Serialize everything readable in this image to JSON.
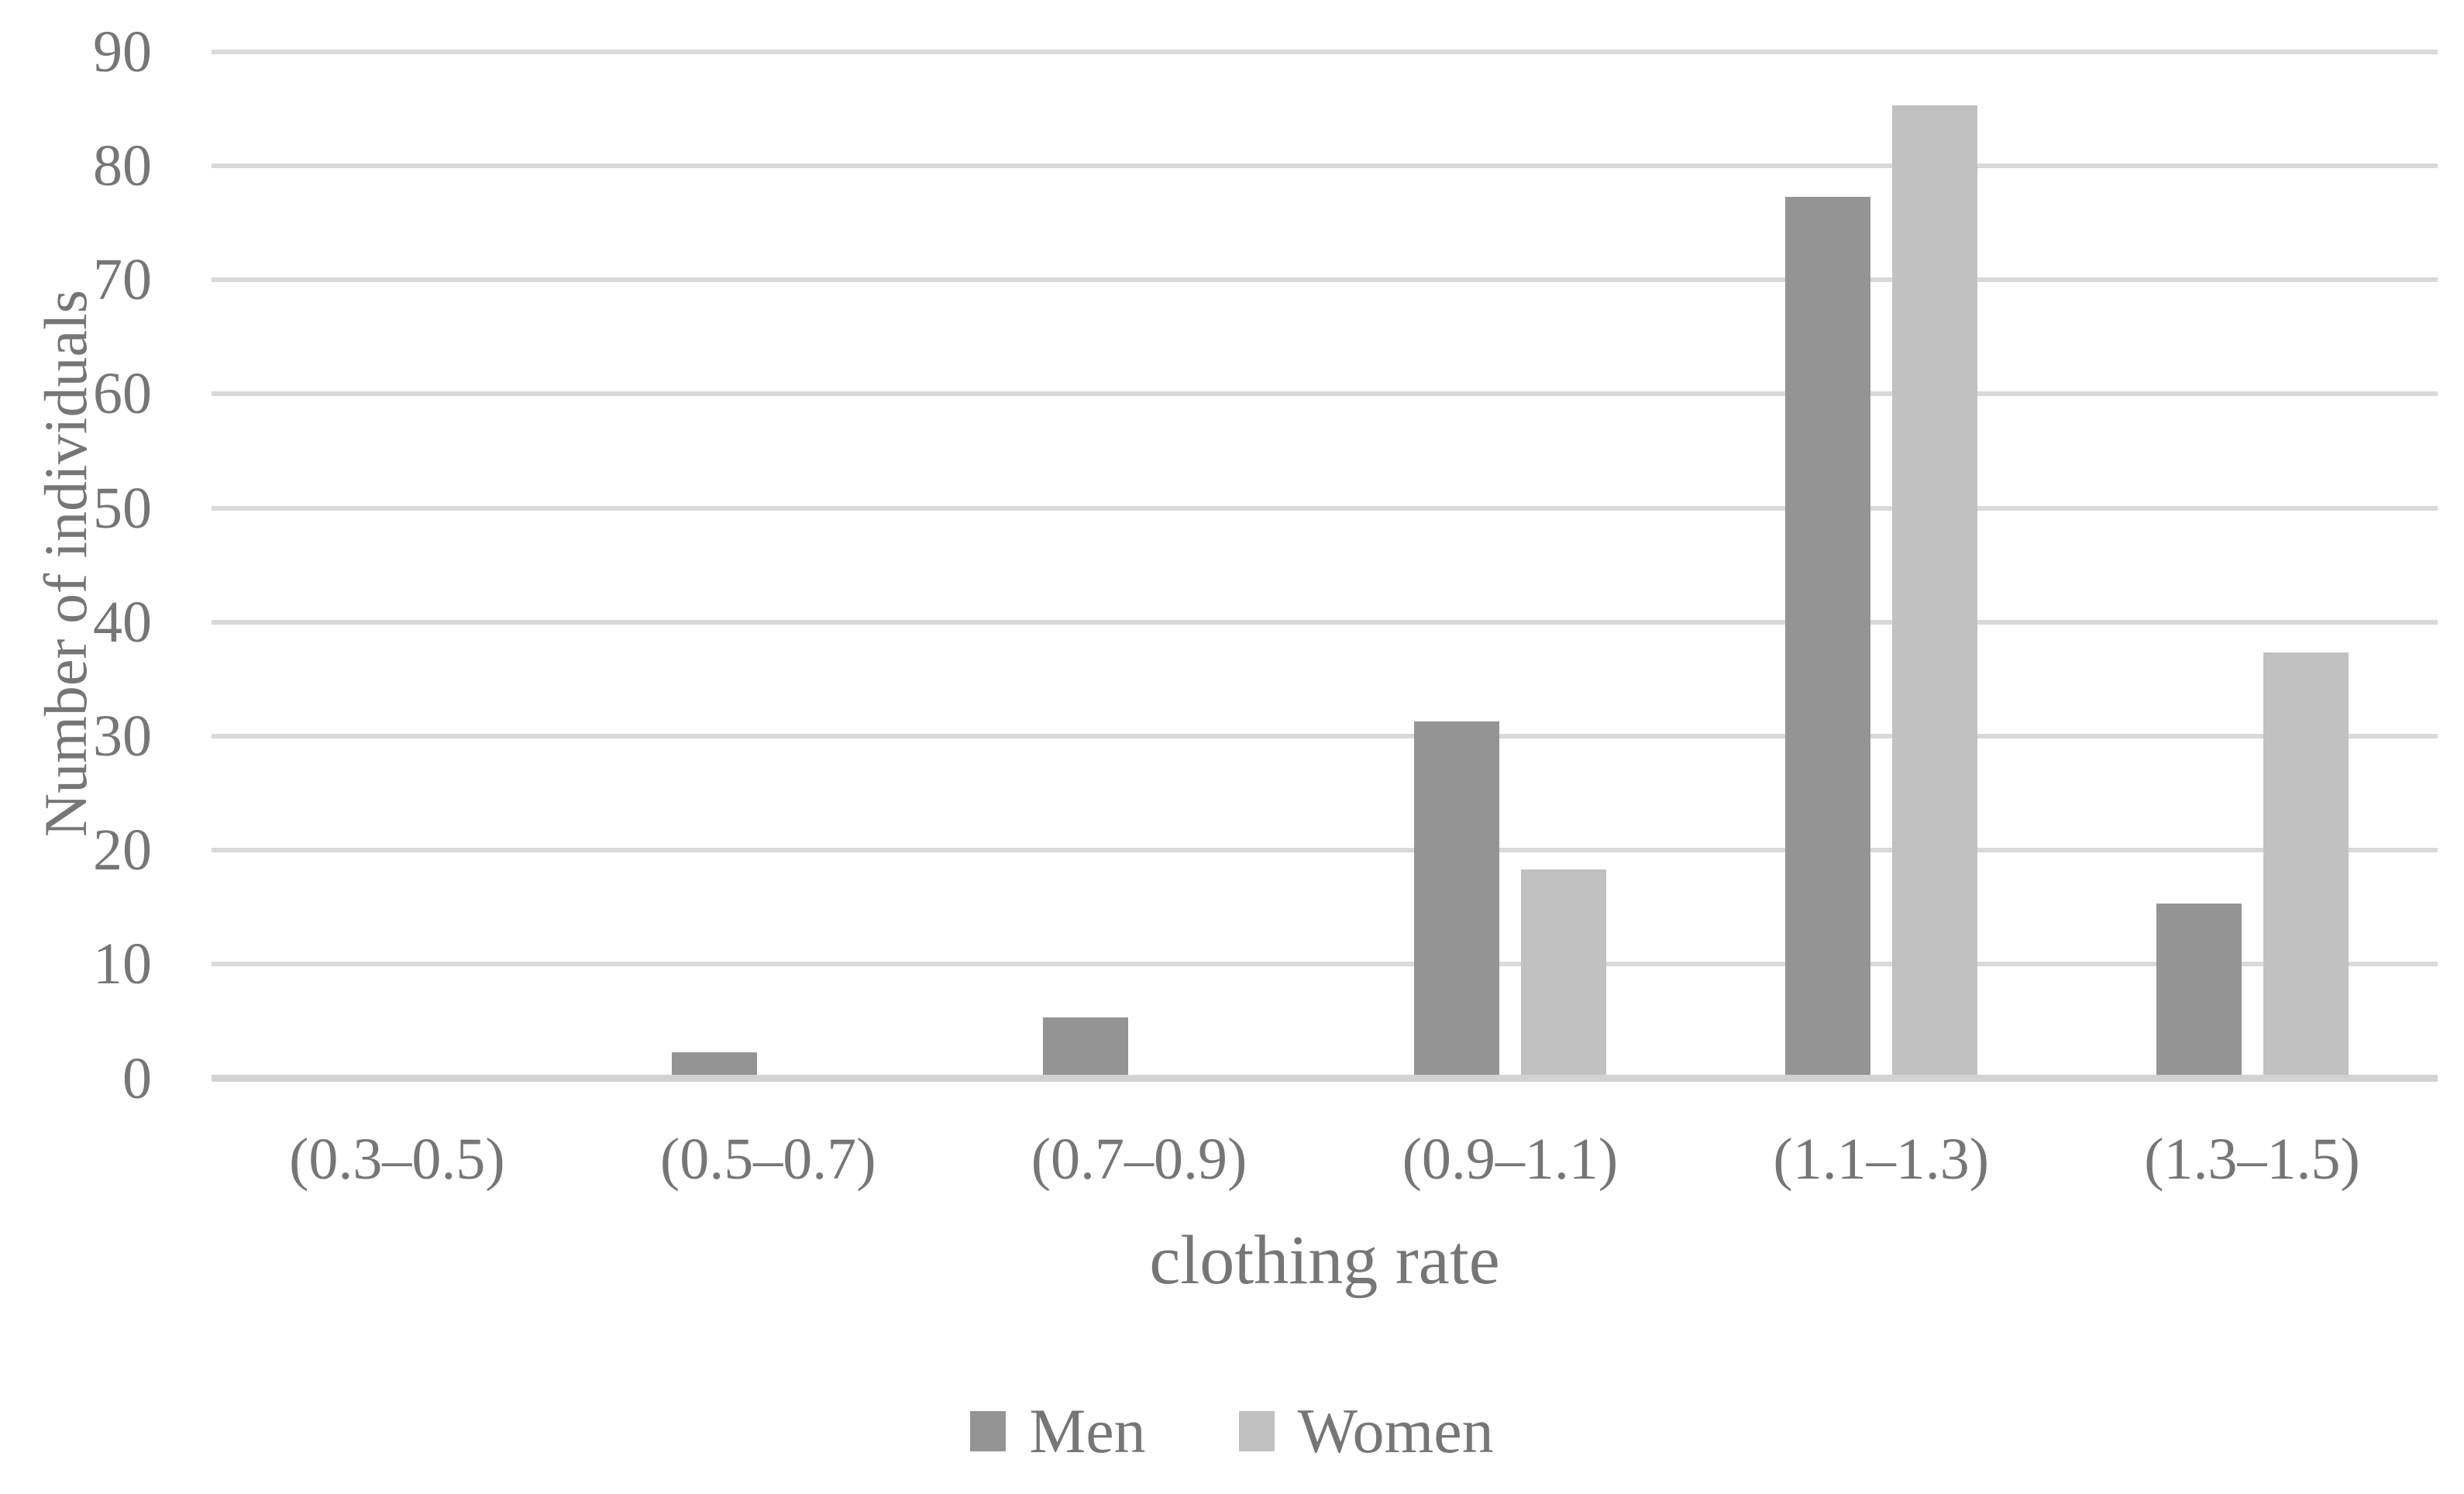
{
  "chart_data": {
    "type": "bar",
    "title": "",
    "categories": [
      "(0.3–0.5)",
      "(0.5–0.7)",
      "(0.7–0.9)",
      "(0.9–1.1)",
      "(1.1–1.3)",
      "(1.3–1.5)"
    ],
    "series": [
      {
        "name": "Men",
        "color": "#949494",
        "values": [
          0,
          2,
          5,
          31,
          77,
          15
        ]
      },
      {
        "name": "Women",
        "color": "#c1c1c1",
        "values": [
          0,
          0,
          0,
          18,
          85,
          37
        ]
      }
    ],
    "xlabel": "clothing rate",
    "ylabel": "Number of individuals",
    "ylim": [
      0,
      90
    ],
    "yticks": [
      0,
      10,
      20,
      30,
      40,
      50,
      60,
      70,
      80,
      90
    ],
    "grid": "horizontal",
    "legend_position": "bottom",
    "colors": {
      "text": "#767676",
      "gridline": "#d9d9d9",
      "axis_line": "#d2d2d2",
      "background": "#ffffff"
    }
  }
}
